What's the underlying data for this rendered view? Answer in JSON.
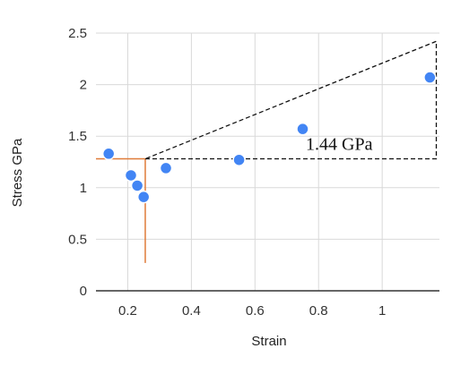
{
  "chart_data": {
    "type": "scatter",
    "xlabel": "Strain",
    "ylabel": "Stress GPa",
    "xlim": [
      0.1,
      1.18
    ],
    "ylim": [
      0,
      2.5
    ],
    "x_ticks": [
      0.2,
      0.4,
      0.6,
      0.8,
      1
    ],
    "x_tick_labels": [
      "0.2",
      "0.4",
      "0.6",
      "0.8",
      "1"
    ],
    "y_ticks": [
      0,
      0.5,
      1,
      1.5,
      2,
      2.5
    ],
    "y_tick_labels": [
      "0",
      "0.5",
      "1",
      "1.5",
      "2",
      "2.5"
    ],
    "grid": true,
    "point_color": "#4285f4",
    "points": [
      {
        "x": 0.14,
        "y": 1.33
      },
      {
        "x": 0.21,
        "y": 1.12
      },
      {
        "x": 0.23,
        "y": 1.02
      },
      {
        "x": 0.25,
        "y": 0.91
      },
      {
        "x": 0.32,
        "y": 1.19
      },
      {
        "x": 0.55,
        "y": 1.27
      },
      {
        "x": 0.75,
        "y": 1.57
      },
      {
        "x": 1.15,
        "y": 2.07
      }
    ],
    "annotations": {
      "orange_color": "#e07b39",
      "orange_vertical": {
        "x": 0.255,
        "y_from": 0.27,
        "y_to": 1.28
      },
      "orange_horizontal": {
        "x_from": 0.1,
        "x_to": 0.255,
        "y": 1.28
      },
      "dashed_triangle": [
        {
          "x": 0.255,
          "y": 1.28
        },
        {
          "x": 1.17,
          "y": 1.28
        },
        {
          "x": 1.17,
          "y": 2.42
        }
      ],
      "label": {
        "text": "1.44 GPa",
        "x": 0.76,
        "y": 1.49
      }
    }
  }
}
